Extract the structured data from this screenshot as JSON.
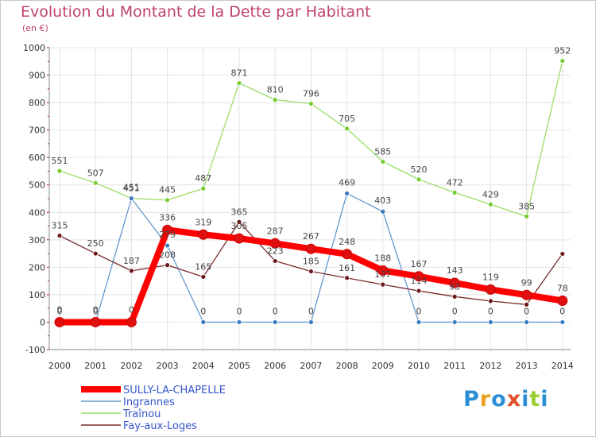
{
  "title": "Evolution du Montant de la Dette par Habitant",
  "subtitle": "(en €)",
  "brand": {
    "text": "Proxiti",
    "colors": [
      "#2c8fd6",
      "#e9a21b",
      "#2c8fd6",
      "#e0502a",
      "#2c8fd6",
      "#9acd32",
      "#2c8fd6"
    ]
  },
  "chart_data": {
    "type": "line",
    "x": [
      "2000",
      "2001",
      "2002",
      "2003",
      "2004",
      "2005",
      "2006",
      "2007",
      "2008",
      "2009",
      "2010",
      "2011",
      "2012",
      "2013",
      "2014"
    ],
    "ylim": [
      -100,
      1000
    ],
    "yticks": [
      -100,
      0,
      100,
      200,
      300,
      400,
      500,
      600,
      700,
      800,
      900,
      1000
    ],
    "grid": true,
    "legend_placement": "bottom-left",
    "series": [
      {
        "name": "SULLY-LA-CHAPELLE",
        "color": "#ff0000",
        "marker": "#e01010",
        "bold": true,
        "values": [
          0,
          0,
          0,
          336,
          319,
          305,
          287,
          267,
          248,
          188,
          167,
          143,
          119,
          99,
          78
        ]
      },
      {
        "name": "Ingrannes",
        "color": "#6699cc",
        "marker": "#3a7bbf",
        "bold": false,
        "values": [
          0,
          0,
          451,
          279,
          0,
          0,
          0,
          0,
          469,
          403,
          0,
          0,
          0,
          0,
          0
        ]
      },
      {
        "name": "Traînou",
        "color": "#99dd66",
        "marker": "#77cc33",
        "bold": false,
        "values": [
          551,
          507,
          451,
          445,
          487,
          871,
          810,
          796,
          705,
          585,
          520,
          472,
          429,
          385,
          952
        ]
      },
      {
        "name": "Fay-aux-Loges",
        "color": "#7a2a2a",
        "marker": "#6b1a1a",
        "bold": false,
        "values": [
          315,
          250,
          187,
          208,
          165,
          365,
          223,
          185,
          161,
          137,
          114,
          93,
          77,
          64,
          249
        ]
      }
    ],
    "data_labels": {
      "Traînou": [
        "551",
        "507",
        "451",
        "445",
        "487",
        "871",
        "810",
        "796",
        "705",
        "585",
        "520",
        "472",
        "429",
        "385",
        "952"
      ],
      "Fay-aux-Loges": [
        "315",
        "250",
        "187",
        "208",
        "165",
        "365",
        "223",
        "185",
        "161",
        "137",
        "114",
        "93",
        "",
        "",
        ""
      ],
      "Ingrannes": [
        "0",
        "0",
        "451",
        "279",
        "0",
        "0",
        "0",
        "0",
        "469",
        "403",
        "0",
        "0",
        "0",
        "0",
        "0"
      ],
      "SULLY-LA-CHAPELLE": [
        "0",
        "0",
        "0",
        "336",
        "319",
        "305",
        "287",
        "267",
        "248",
        "188",
        "167",
        "143",
        "119",
        "99",
        "78"
      ]
    }
  }
}
